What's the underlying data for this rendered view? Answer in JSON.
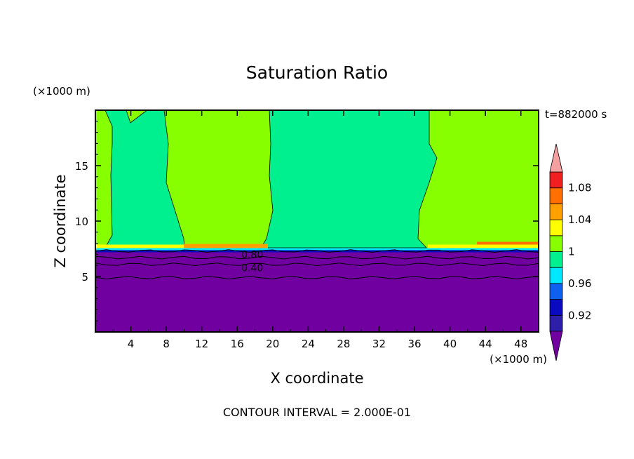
{
  "chart_data": {
    "type": "heatmap",
    "title": "Saturation Ratio",
    "xlabel": "X coordinate",
    "ylabel": "Z coordinate",
    "x_unit": "(×1000 m)",
    "y_unit": "(×1000 m)",
    "time_label": "t=882000 s",
    "footer": "CONTOUR INTERVAL = 2.000E-01",
    "xlim": [
      0,
      50
    ],
    "ylim": [
      0,
      20
    ],
    "x_ticks": [
      4,
      8,
      12,
      16,
      20,
      24,
      28,
      32,
      36,
      40,
      44,
      48
    ],
    "y_ticks": [
      5,
      10,
      15
    ],
    "contour_labels": [
      {
        "text": "0.80",
        "x": 17.7,
        "y": 7.0
      },
      {
        "text": "0.40",
        "x": 17.7,
        "y": 5.8
      }
    ],
    "colorbar": {
      "levels": [
        0.9,
        0.92,
        0.94,
        0.96,
        0.98,
        1.0,
        1.02,
        1.04,
        1.06,
        1.08,
        1.1
      ],
      "colors": [
        "#7000a0",
        "#2e1fa8",
        "#0a0ac0",
        "#1060f0",
        "#00e8ff",
        "#00f090",
        "#88ff00",
        "#ffff00",
        "#ffa000",
        "#ff7000",
        "#f02020",
        "#f5a0a0"
      ],
      "labels": [
        "0.92",
        "0.96",
        "1",
        "1.04",
        "1.08"
      ],
      "label_values": [
        0.92,
        0.96,
        1.0,
        1.04,
        1.08
      ]
    },
    "regions": {
      "layer_top_z": 7.5,
      "dry_color": "#7000a0",
      "moist_color": "#00f090",
      "supersat_color": "#88ff00"
    }
  }
}
